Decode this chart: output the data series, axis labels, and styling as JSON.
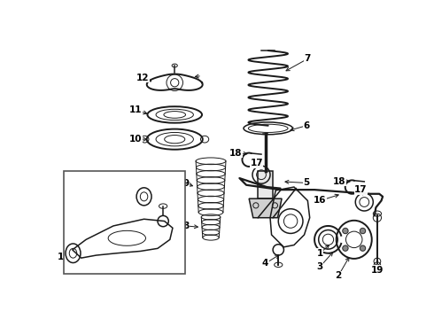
{
  "background_color": "#ffffff",
  "line_color": "#1a1a1a",
  "label_fontsize": 7.5,
  "lw_main": 1.1,
  "lw_thin": 0.7,
  "fig_w": 4.9,
  "fig_h": 3.6,
  "dpi": 100
}
